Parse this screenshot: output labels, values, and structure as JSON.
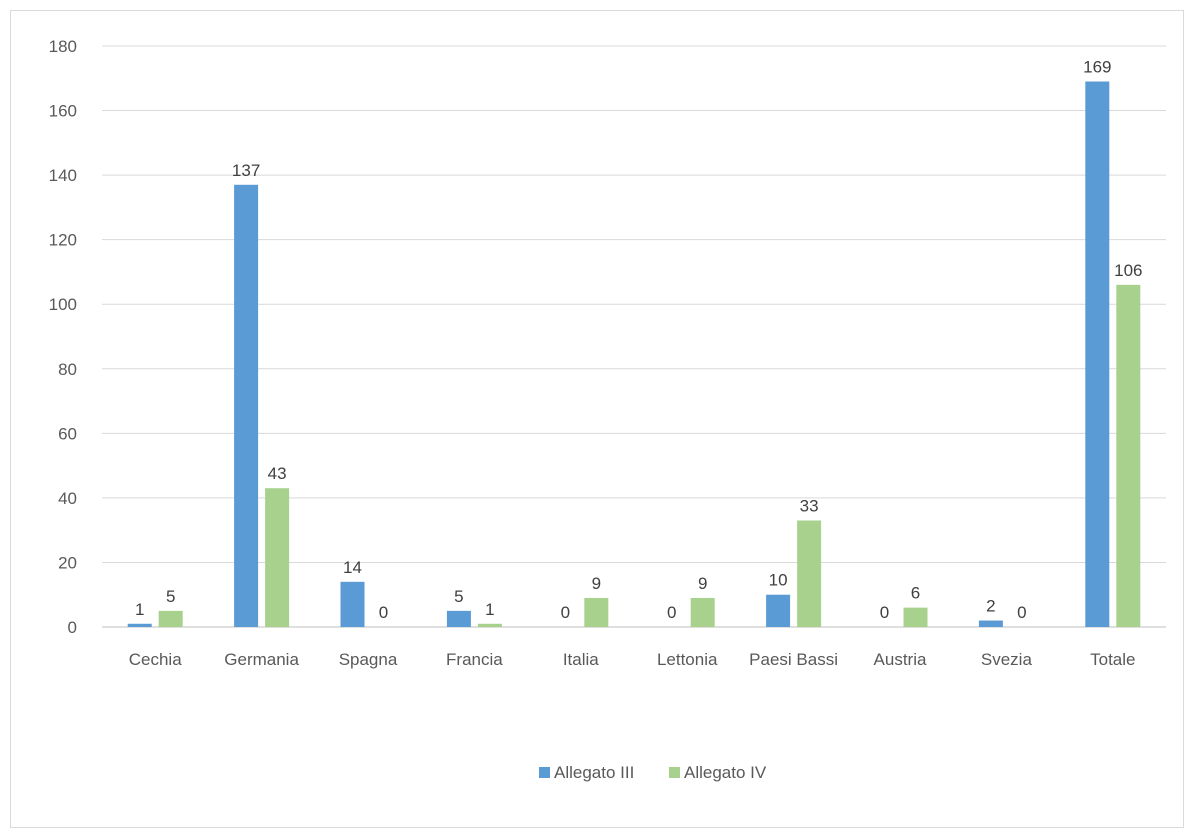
{
  "chart_data": {
    "type": "bar",
    "categories": [
      "Cechia",
      "Germania",
      "Spagna",
      "Francia",
      "Italia",
      "Lettonia",
      "Paesi Bassi",
      "Austria",
      "Svezia",
      "Totale"
    ],
    "series": [
      {
        "name": "Allegato III",
        "color": "#5b9bd5",
        "values": [
          1,
          137,
          14,
          5,
          0,
          0,
          10,
          0,
          2,
          169
        ]
      },
      {
        "name": "Allegato IV",
        "color": "#a9d18e",
        "values": [
          5,
          43,
          0,
          1,
          9,
          9,
          33,
          6,
          0,
          106
        ]
      }
    ],
    "yticks": [
      "0",
      "20",
      "40",
      "60",
      "80",
      "100",
      "120",
      "140",
      "160",
      "180"
    ],
    "ylim": [
      0,
      180
    ],
    "grid": true,
    "legend_position": "bottom"
  }
}
